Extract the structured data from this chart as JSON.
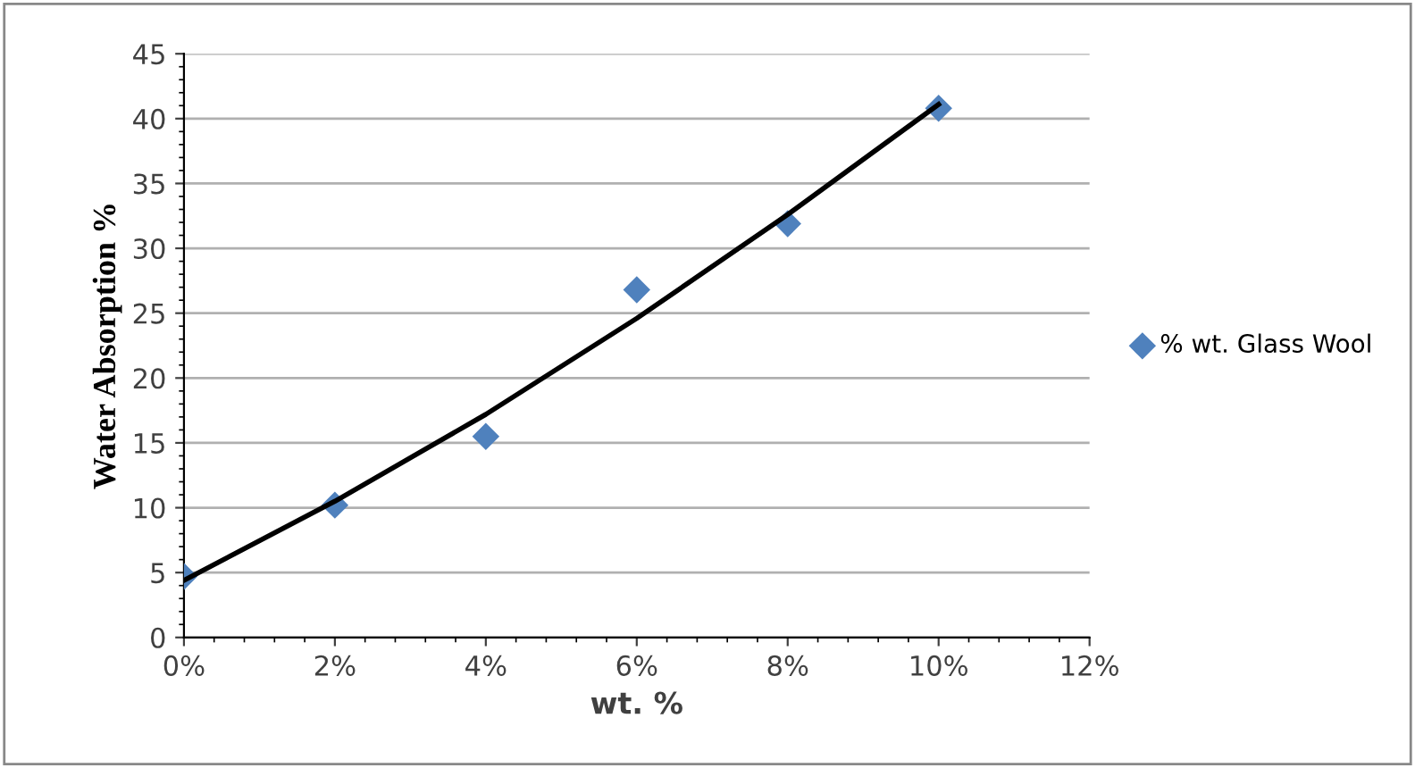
{
  "chart_data": {
    "type": "scatter",
    "xlabel": "wt. %",
    "ylabel": "Water Absorption %",
    "xlim": [
      0,
      12
    ],
    "xticks": [
      {
        "value": 0,
        "label": "0%"
      },
      {
        "value": 2,
        "label": "2%"
      },
      {
        "value": 4,
        "label": "4%"
      },
      {
        "value": 6,
        "label": "6%"
      },
      {
        "value": 8,
        "label": "8%"
      },
      {
        "value": 10,
        "label": "10%"
      },
      {
        "value": 12,
        "label": "12%"
      }
    ],
    "ylim": [
      0,
      45
    ],
    "yticks": [
      0,
      5,
      10,
      15,
      20,
      25,
      30,
      35,
      40,
      45
    ],
    "grid": "y",
    "legend": "right",
    "x": [
      0,
      2,
      4,
      6,
      8,
      10
    ],
    "series": [
      {
        "name": "% wt. Glass Wool",
        "marker": "diamond",
        "color": "#4f81bd",
        "values": [
          4.7,
          10.2,
          15.5,
          26.8,
          31.9,
          40.8
        ]
      },
      {
        "type": "line",
        "marker": "none",
        "color": "#000000",
        "x": [
          0,
          2,
          4,
          6,
          8,
          10
        ],
        "values": [
          4.4,
          10.5,
          17.2,
          24.6,
          32.6,
          41.1
        ]
      }
    ]
  }
}
